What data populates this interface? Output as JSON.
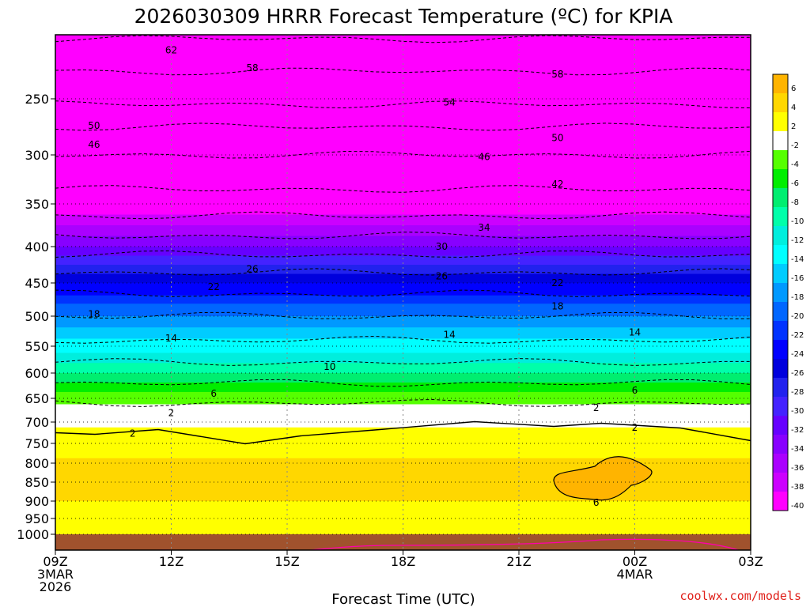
{
  "chart_data": {
    "type": "heatmap",
    "title": "2026030309 HRRR Forecast Temperature (ºC) for KPIA",
    "xlabel": "Forecast Time (UTC)",
    "ylabel": "",
    "credit": "coolwx.com/models",
    "x_ticks": [
      {
        "hours": 0,
        "lines": [
          "09Z",
          "3MAR",
          "2026"
        ]
      },
      {
        "hours": 3,
        "lines": [
          "12Z"
        ]
      },
      {
        "hours": 6,
        "lines": [
          "15Z"
        ]
      },
      {
        "hours": 9,
        "lines": [
          "18Z"
        ]
      },
      {
        "hours": 12,
        "lines": [
          "21Z"
        ]
      },
      {
        "hours": 15,
        "lines": [
          "00Z",
          "4MAR"
        ]
      },
      {
        "hours": 18,
        "lines": [
          "03Z"
        ]
      }
    ],
    "xlim": [
      0,
      18
    ],
    "y_ticks": [
      250,
      300,
      350,
      400,
      450,
      500,
      550,
      600,
      650,
      700,
      750,
      800,
      850,
      900,
      950,
      1000
    ],
    "ylim_hpa": [
      200,
      1000
    ],
    "levels": [
      {
        "p": 200,
        "t": -62.5
      },
      {
        "p": 225,
        "t": -58.5
      },
      {
        "p": 250,
        "t": -55
      },
      {
        "p": 275,
        "t": -50
      },
      {
        "p": 300,
        "t": -46
      },
      {
        "p": 325,
        "t": -43
      },
      {
        "p": 350,
        "t": -40.5
      },
      {
        "p": 375,
        "t": -36
      },
      {
        "p": 400,
        "t": -32
      },
      {
        "p": 425,
        "t": -27.5
      },
      {
        "p": 450,
        "t": -24
      },
      {
        "p": 475,
        "t": -21
      },
      {
        "p": 500,
        "t": -18
      },
      {
        "p": 525,
        "t": -15.5
      },
      {
        "p": 550,
        "t": -13
      },
      {
        "p": 575,
        "t": -10.5
      },
      {
        "p": 600,
        "t": -8
      },
      {
        "p": 625,
        "t": -5.5
      },
      {
        "p": 650,
        "t": -3
      },
      {
        "p": 675,
        "t": -0.5
      },
      {
        "p": 700,
        "t": 1.5
      },
      {
        "p": 750,
        "t": 3
      },
      {
        "p": 800,
        "t": 4.5
      },
      {
        "p": 850,
        "t": 4.5
      },
      {
        "p": 900,
        "t": 4
      },
      {
        "p": 950,
        "t": 2.5
      },
      {
        "p": 985,
        "t": 2
      }
    ],
    "ground_color": "#a0522d",
    "legend": {
      "labels": [
        6,
        4,
        2,
        -2,
        -4,
        -6,
        -8,
        -10,
        -12,
        -14,
        -16,
        -18,
        -20,
        -22,
        -24,
        -26,
        -28,
        -30,
        -32,
        -34,
        -36,
        -38,
        -40
      ],
      "colors": [
        "#ffb400",
        "#ffd700",
        "#ffff00",
        "#ffffff",
        "#55ff00",
        "#00ee00",
        "#00ee70",
        "#00ffaa",
        "#00eedd",
        "#00ffff",
        "#00ccff",
        "#0099ff",
        "#0066ff",
        "#0033ff",
        "#0000ff",
        "#0000dd",
        "#2222ee",
        "#4422ff",
        "#6600ff",
        "#8800ff",
        "#aa00ff",
        "#cc00ff",
        "#ff00ff"
      ]
    },
    "contour_labels": [
      {
        "v": "62",
        "h": 3.0,
        "p": 212
      },
      {
        "v": "58",
        "h": 5.1,
        "p": 226
      },
      {
        "v": "58",
        "h": 13.0,
        "p": 231
      },
      {
        "v": "54",
        "h": 10.2,
        "p": 253
      },
      {
        "v": "50",
        "h": 1.0,
        "p": 274
      },
      {
        "v": "50",
        "h": 13.0,
        "p": 285
      },
      {
        "v": "46",
        "h": 1.0,
        "p": 291
      },
      {
        "v": "46",
        "h": 11.1,
        "p": 302
      },
      {
        "v": "42",
        "h": 13.0,
        "p": 330
      },
      {
        "v": "34",
        "h": 11.1,
        "p": 378
      },
      {
        "v": "30",
        "h": 10.0,
        "p": 400
      },
      {
        "v": "26",
        "h": 5.1,
        "p": 431
      },
      {
        "v": "26",
        "h": 10.0,
        "p": 441
      },
      {
        "v": "22",
        "h": 4.1,
        "p": 456
      },
      {
        "v": "22",
        "h": 13.0,
        "p": 450
      },
      {
        "v": "18",
        "h": 1.0,
        "p": 497
      },
      {
        "v": "18",
        "h": 13.0,
        "p": 485
      },
      {
        "v": "14",
        "h": 3.0,
        "p": 537
      },
      {
        "v": "14",
        "h": 10.2,
        "p": 531
      },
      {
        "v": "14",
        "h": 15.0,
        "p": 527
      },
      {
        "v": "10",
        "h": 7.1,
        "p": 588
      },
      {
        "v": "6",
        "h": 4.1,
        "p": 641
      },
      {
        "v": "6",
        "h": 15.0,
        "p": 634
      },
      {
        "v": "2",
        "h": 3.0,
        "p": 681
      },
      {
        "v": "2",
        "h": 14.0,
        "p": 670
      },
      {
        "v": "2",
        "h": 2.0,
        "p": 727
      },
      {
        "v": "2",
        "h": 15.0,
        "p": 713
      },
      {
        "v": "6",
        "h": 14.0,
        "p": 904
      }
    ]
  }
}
